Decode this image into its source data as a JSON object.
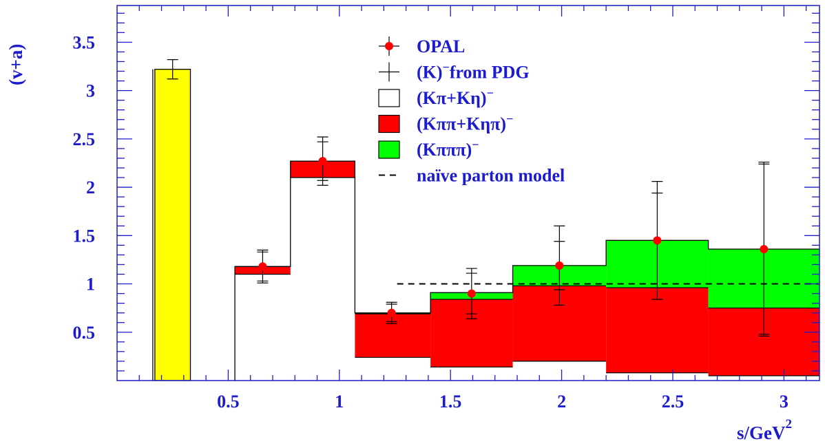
{
  "chart_data": {
    "type": "bar",
    "ylabel": "(v+a)",
    "xlabel": "s/GeV",
    "xlabel_exponent": "2",
    "xlim": [
      0.0,
      3.16
    ],
    "ylim": [
      0.0,
      3.88
    ],
    "x_ticks": [
      "0.5",
      "1",
      "1.5",
      "2",
      "2.5",
      "3"
    ],
    "x_tick_values": [
      0.5,
      1.0,
      1.5,
      2.0,
      2.5,
      3.0
    ],
    "y_ticks": [
      "0.5",
      "1",
      "1.5",
      "2",
      "2.5",
      "3",
      "3.5"
    ],
    "y_tick_values": [
      0.5,
      1.0,
      1.5,
      2.0,
      2.5,
      3.0,
      3.5
    ],
    "colors": {
      "axis": "#1c1ccc",
      "yellow": "#ffff00",
      "red": "#ff0000",
      "green": "#00ff00",
      "outline": "#000000"
    },
    "kaon_bin": {
      "x_low": 0.17,
      "x_high": 0.33,
      "value": 3.22,
      "err": 0.1
    },
    "bins": [
      {
        "x_low": 0.53,
        "x_high": 0.78,
        "kpi_keta": 1.1,
        "kpipi_ketapi": 1.18,
        "kpipipi": 1.18
      },
      {
        "x_low": 0.78,
        "x_high": 1.07,
        "kpi_keta": 2.1,
        "kpipi_ketapi": 2.27,
        "kpipipi": 2.27
      },
      {
        "x_low": 1.07,
        "x_high": 1.41,
        "kpi_keta": 0.24,
        "kpipi_ketapi": 0.69,
        "kpipipi": 0.7
      },
      {
        "x_low": 1.41,
        "x_high": 1.78,
        "kpi_keta": 0.14,
        "kpipi_ketapi": 0.84,
        "kpipipi": 0.91
      },
      {
        "x_low": 1.78,
        "x_high": 2.2,
        "kpi_keta": 0.2,
        "kpipi_ketapi": 0.98,
        "kpipipi": 1.19
      },
      {
        "x_low": 2.2,
        "x_high": 2.66,
        "kpi_keta": 0.08,
        "kpipi_ketapi": 0.96,
        "kpipipi": 1.45
      },
      {
        "x_low": 2.66,
        "x_high": 3.16,
        "kpi_keta": 0.05,
        "kpipi_ketapi": 0.75,
        "kpipipi": 1.36
      }
    ],
    "opal_points": [
      {
        "x": 0.655,
        "y": 1.18,
        "err_inner": 0.15,
        "err_outer": 0.17
      },
      {
        "x": 0.925,
        "y": 2.27,
        "err_inner": 0.2,
        "err_outer": 0.25
      },
      {
        "x": 1.235,
        "y": 0.7,
        "err_inner": 0.09,
        "err_outer": 0.11
      },
      {
        "x": 1.595,
        "y": 0.9,
        "err_inner": 0.21,
        "err_outer": 0.26
      },
      {
        "x": 1.99,
        "y": 1.19,
        "err_inner": 0.25,
        "err_outer": 0.41
      },
      {
        "x": 2.43,
        "y": 1.45,
        "err_inner": 0.49,
        "err_outer": 0.61
      },
      {
        "x": 2.91,
        "y": 1.36,
        "err_inner": 0.88,
        "err_outer": 0.9
      }
    ],
    "parton_model": {
      "x_start": 1.26,
      "x_end": 3.16,
      "value": 1.0
    },
    "legend": {
      "placement": "top-center",
      "entries": [
        {
          "label": "OPAL",
          "sup": "",
          "kind": "point"
        },
        {
          "label": "(K)",
          "sup": "−",
          "suffix": "from PDG",
          "kind": "cross"
        },
        {
          "label": "(Kπ+Kη)",
          "sup": "−",
          "kind": "white-box"
        },
        {
          "label": "(Kππ+Kηπ)",
          "sup": "−",
          "kind": "red-box"
        },
        {
          "label": "(Kπππ)",
          "sup": "−",
          "kind": "green-box"
        },
        {
          "label": "naïve parton model",
          "sup": "",
          "kind": "dashed"
        }
      ]
    }
  }
}
